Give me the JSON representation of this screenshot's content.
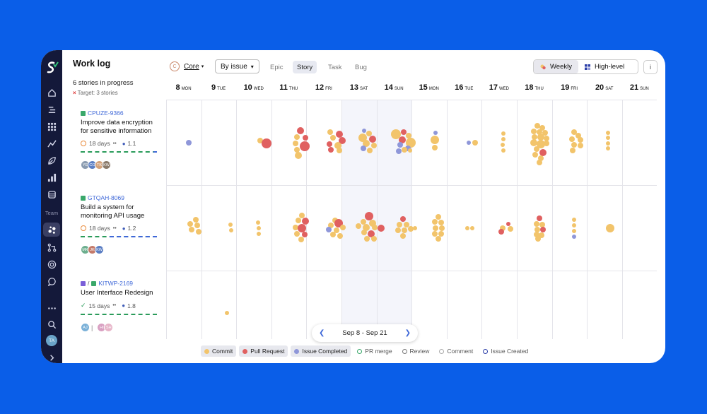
{
  "sidebar": {
    "team_label": "Team",
    "avatar": "TA",
    "icons": [
      "logo-icon",
      "home-icon",
      "list-icon",
      "grid-icon",
      "chart-icon",
      "leaf-icon",
      "bars-icon",
      "database-icon",
      "team-icon",
      "merge-icon",
      "target-icon",
      "chat-icon",
      "more-icon",
      "search-icon",
      "expand-icon"
    ]
  },
  "header": {
    "title": "Work log",
    "progress": "6 stories in progress",
    "target": "Target: 3 stories",
    "project_badge": "C",
    "project": "Core",
    "group_by": "By issue",
    "tabs": [
      "Epic",
      "Story",
      "Task",
      "Bug"
    ],
    "active_tab": "Story",
    "view_weekly": "Weekly",
    "view_highlevel": "High-level",
    "info": "i"
  },
  "days": [
    {
      "num": "8",
      "dow": "MON"
    },
    {
      "num": "9",
      "dow": "TUE"
    },
    {
      "num": "10",
      "dow": "WED"
    },
    {
      "num": "11",
      "dow": "THU"
    },
    {
      "num": "12",
      "dow": "FRI"
    },
    {
      "num": "13",
      "dow": "SAT"
    },
    {
      "num": "14",
      "dow": "SUN"
    },
    {
      "num": "15",
      "dow": "MON"
    },
    {
      "num": "16",
      "dow": "TUE"
    },
    {
      "num": "17",
      "dow": "WED"
    },
    {
      "num": "18",
      "dow": "THU"
    },
    {
      "num": "19",
      "dow": "FRI"
    },
    {
      "num": "20",
      "dow": "SAT"
    },
    {
      "num": "21",
      "dow": "SUN"
    }
  ],
  "stories": [
    {
      "id": "CPUZE-9366",
      "name": "Improve data encryption for sensitive information",
      "days": "18 days",
      "eyes": "••",
      "people": "1.1",
      "done": 0.95,
      "avatars": [
        {
          "t": "YE",
          "c": "#8a9bb0"
        },
        {
          "t": "CO",
          "c": "#5c7fc4"
        },
        {
          "t": "TK",
          "c": "#d4a27a"
        },
        {
          "t": "KW",
          "c": "#8b7b6b"
        }
      ]
    },
    {
      "id": "GTQAH-8069",
      "name": "Build a system for monitoring API usage",
      "days": "18 days",
      "eyes": "••",
      "people": "1.2",
      "done": 0.38,
      "avatars": [
        {
          "t": "MK",
          "c": "#6cae8e"
        },
        {
          "t": "JK",
          "c": "#c47a6a"
        },
        {
          "t": "KW",
          "c": "#5c7fc4"
        }
      ]
    },
    {
      "id": "KITWP-2169",
      "name": "User Interface Redesign",
      "days": "15 days",
      "eyes": "••",
      "people": "1.8",
      "done": 1.0,
      "avatars": [
        {
          "t": "AJ",
          "c": "#7bb1d8"
        },
        {
          "t": "HI",
          "c": "#d9a0c2"
        },
        {
          "t": "SH",
          "c": "#e7b4c8"
        }
      ],
      "sep": "|",
      "prefix": "/"
    }
  ],
  "date_range": "Sep 8 - Sep 21",
  "legend": [
    {
      "label": "Commit",
      "color": "#f2c46b",
      "filled": true
    },
    {
      "label": "Pull Request",
      "color": "#e06060",
      "filled": true
    },
    {
      "label": "Issue Completed",
      "color": "#8f97d9",
      "filled": true
    },
    {
      "label": "PR merge",
      "color": "#3aa86b",
      "filled": false
    },
    {
      "label": "Review",
      "color": "#777",
      "filled": false
    },
    {
      "label": "Comment",
      "color": "#aaa",
      "filled": false
    },
    {
      "label": "Issue Created",
      "color": "#2c3fa8",
      "filled": false
    }
  ],
  "colors": {
    "commit": "#f2c46b",
    "pr": "#e06060",
    "issue": "#8f97d9"
  }
}
